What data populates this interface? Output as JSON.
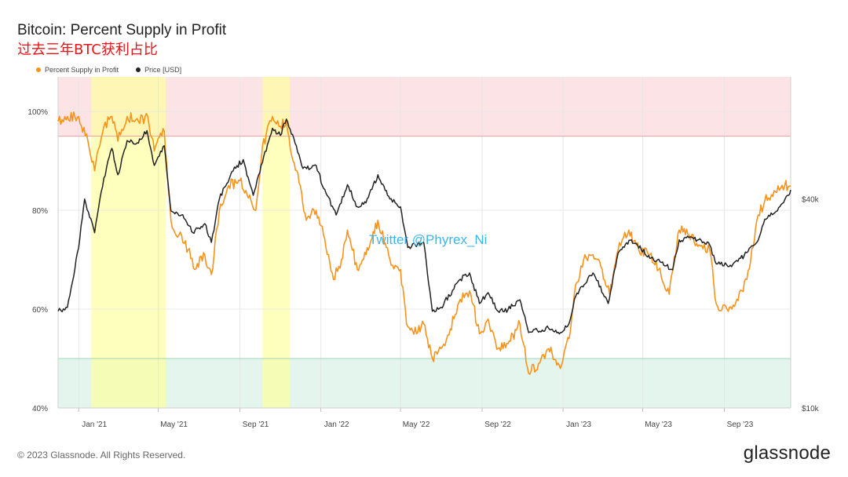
{
  "header": {
    "title": "Bitcoin: Percent Supply in Profit",
    "subtitle": "过去三年BTC获利占比"
  },
  "legend": [
    {
      "label": "Percent Supply in Profit",
      "color": "#f7931a"
    },
    {
      "label": "Price [USD]",
      "color": "#222222"
    }
  ],
  "watermark": "Twitter @Phyrex_Ni",
  "footer": {
    "copyright": "© 2023 Glassnode. All Rights Reserved.",
    "brand": "glassnode"
  },
  "chart_data": {
    "type": "line",
    "x_range": [
      "2020-12-01",
      "2023-12-10"
    ],
    "x_ticks": [
      "Jan '21",
      "May '21",
      "Sep '21",
      "Jan '22",
      "May '22",
      "Sep '22",
      "Jan '23",
      "May '23",
      "Sep '23"
    ],
    "y_left": {
      "label": "",
      "range": [
        40,
        107
      ],
      "ticks": [
        "40%",
        "60%",
        "80%",
        "100%"
      ],
      "tick_values": [
        40,
        60,
        80,
        100
      ]
    },
    "y_right": {
      "label": "",
      "scale": "log",
      "range": [
        10000,
        90000
      ],
      "ticks": [
        "$10k",
        "$40k"
      ],
      "tick_values": [
        10000,
        40000
      ]
    },
    "bands": [
      {
        "name": "profit_high_zone",
        "from": 95,
        "to": 107,
        "color": "#fce4e6"
      },
      {
        "name": "profit_low_zone",
        "from": 40,
        "to": 50,
        "color": "#e3f5ec"
      }
    ],
    "threshold_lines": [
      {
        "value": 95,
        "color": "#e8a0a0"
      },
      {
        "value": 50,
        "color": "#9fd6b8"
      }
    ],
    "highlight_ranges": [
      {
        "from": "2021-01-20",
        "to": "2021-05-12",
        "color": "#ffff99"
      },
      {
        "from": "2021-10-05",
        "to": "2021-11-15",
        "color": "#ffff99"
      }
    ],
    "grid": true,
    "legend_position": "top-left",
    "series": [
      {
        "name": "Percent Supply in Profit",
        "axis": "left",
        "color": "#f7931a",
        "points": [
          [
            "2020-12-01",
            98
          ],
          [
            "2020-12-15",
            99
          ],
          [
            "2021-01-01",
            99
          ],
          [
            "2021-01-15",
            94
          ],
          [
            "2021-01-25",
            88
          ],
          [
            "2021-02-08",
            97
          ],
          [
            "2021-02-20",
            99
          ],
          [
            "2021-03-01",
            94
          ],
          [
            "2021-03-15",
            99
          ],
          [
            "2021-04-01",
            98
          ],
          [
            "2021-04-15",
            99
          ],
          [
            "2021-04-25",
            92
          ],
          [
            "2021-05-10",
            96
          ],
          [
            "2021-05-20",
            78
          ],
          [
            "2021-06-01",
            75
          ],
          [
            "2021-06-15",
            72
          ],
          [
            "2021-06-25",
            68
          ],
          [
            "2021-07-10",
            71
          ],
          [
            "2021-07-20",
            67
          ],
          [
            "2021-08-01",
            80
          ],
          [
            "2021-08-15",
            85
          ],
          [
            "2021-09-01",
            86
          ],
          [
            "2021-09-10",
            84
          ],
          [
            "2021-09-25",
            80
          ],
          [
            "2021-10-05",
            93
          ],
          [
            "2021-10-20",
            99
          ],
          [
            "2021-11-01",
            97
          ],
          [
            "2021-11-10",
            98
          ],
          [
            "2021-11-20",
            90
          ],
          [
            "2021-12-01",
            85
          ],
          [
            "2021-12-10",
            78
          ],
          [
            "2021-12-25",
            80
          ],
          [
            "2022-01-05",
            75
          ],
          [
            "2022-01-20",
            66
          ],
          [
            "2022-02-01",
            70
          ],
          [
            "2022-02-10",
            76
          ],
          [
            "2022-02-25",
            68
          ],
          [
            "2022-03-10",
            71
          ],
          [
            "2022-03-28",
            78
          ],
          [
            "2022-04-15",
            70
          ],
          [
            "2022-05-01",
            68
          ],
          [
            "2022-05-10",
            57
          ],
          [
            "2022-05-25",
            55
          ],
          [
            "2022-06-05",
            57
          ],
          [
            "2022-06-18",
            50
          ],
          [
            "2022-07-01",
            52
          ],
          [
            "2022-07-15",
            56
          ],
          [
            "2022-07-30",
            62
          ],
          [
            "2022-08-15",
            63
          ],
          [
            "2022-08-28",
            55
          ],
          [
            "2022-09-10",
            58
          ],
          [
            "2022-09-25",
            52
          ],
          [
            "2022-10-10",
            53
          ],
          [
            "2022-10-28",
            57
          ],
          [
            "2022-11-10",
            47
          ],
          [
            "2022-11-25",
            49
          ],
          [
            "2022-12-10",
            52
          ],
          [
            "2022-12-28",
            48
          ],
          [
            "2023-01-10",
            54
          ],
          [
            "2023-01-20",
            65
          ],
          [
            "2023-02-01",
            70
          ],
          [
            "2023-02-15",
            71
          ],
          [
            "2023-03-01",
            68
          ],
          [
            "2023-03-12",
            63
          ],
          [
            "2023-03-25",
            72
          ],
          [
            "2023-04-10",
            76
          ],
          [
            "2023-04-25",
            72
          ],
          [
            "2023-05-10",
            71
          ],
          [
            "2023-05-25",
            68
          ],
          [
            "2023-06-10",
            63
          ],
          [
            "2023-06-25",
            76
          ],
          [
            "2023-07-10",
            75
          ],
          [
            "2023-07-25",
            73
          ],
          [
            "2023-08-10",
            72
          ],
          [
            "2023-08-20",
            61
          ],
          [
            "2023-09-05",
            60
          ],
          [
            "2023-09-20",
            62
          ],
          [
            "2023-10-05",
            66
          ],
          [
            "2023-10-20",
            78
          ],
          [
            "2023-11-01",
            82
          ],
          [
            "2023-11-15",
            84
          ],
          [
            "2023-12-01",
            85
          ],
          [
            "2023-12-10",
            85
          ]
        ]
      },
      {
        "name": "Price [USD]",
        "axis": "right",
        "color": "#222222",
        "points": [
          [
            "2020-12-01",
            19000
          ],
          [
            "2020-12-15",
            19500
          ],
          [
            "2021-01-01",
            29000
          ],
          [
            "2021-01-10",
            40000
          ],
          [
            "2021-01-25",
            32000
          ],
          [
            "2021-02-08",
            46000
          ],
          [
            "2021-02-20",
            56000
          ],
          [
            "2021-03-01",
            47000
          ],
          [
            "2021-03-15",
            59000
          ],
          [
            "2021-04-01",
            58000
          ],
          [
            "2021-04-14",
            63000
          ],
          [
            "2021-04-25",
            50000
          ],
          [
            "2021-05-10",
            57000
          ],
          [
            "2021-05-20",
            37000
          ],
          [
            "2021-06-05",
            36000
          ],
          [
            "2021-06-22",
            32000
          ],
          [
            "2021-07-10",
            34000
          ],
          [
            "2021-07-20",
            30000
          ],
          [
            "2021-08-01",
            40000
          ],
          [
            "2021-08-20",
            48000
          ],
          [
            "2021-09-06",
            52000
          ],
          [
            "2021-09-21",
            41000
          ],
          [
            "2021-10-05",
            51000
          ],
          [
            "2021-10-20",
            64000
          ],
          [
            "2021-11-01",
            61000
          ],
          [
            "2021-11-10",
            68000
          ],
          [
            "2021-11-25",
            57000
          ],
          [
            "2021-12-05",
            49000
          ],
          [
            "2021-12-25",
            50000
          ],
          [
            "2022-01-05",
            43000
          ],
          [
            "2022-01-24",
            36000
          ],
          [
            "2022-02-10",
            44000
          ],
          [
            "2022-02-25",
            38000
          ],
          [
            "2022-03-10",
            39000
          ],
          [
            "2022-03-28",
            47000
          ],
          [
            "2022-04-15",
            40000
          ],
          [
            "2022-05-01",
            38000
          ],
          [
            "2022-05-12",
            29000
          ],
          [
            "2022-06-05",
            30000
          ],
          [
            "2022-06-18",
            19000
          ],
          [
            "2022-07-01",
            19500
          ],
          [
            "2022-07-30",
            23500
          ],
          [
            "2022-08-13",
            24500
          ],
          [
            "2022-08-28",
            20000
          ],
          [
            "2022-09-10",
            21500
          ],
          [
            "2022-09-25",
            19000
          ],
          [
            "2022-10-10",
            19200
          ],
          [
            "2022-10-28",
            20500
          ],
          [
            "2022-11-10",
            16500
          ],
          [
            "2022-12-10",
            17000
          ],
          [
            "2022-12-30",
            16500
          ],
          [
            "2023-01-10",
            17500
          ],
          [
            "2023-01-20",
            21000
          ],
          [
            "2023-02-15",
            24500
          ],
          [
            "2023-03-10",
            20000
          ],
          [
            "2023-03-25",
            28000
          ],
          [
            "2023-04-14",
            30500
          ],
          [
            "2023-05-10",
            27500
          ],
          [
            "2023-06-15",
            25000
          ],
          [
            "2023-06-25",
            30500
          ],
          [
            "2023-07-15",
            31000
          ],
          [
            "2023-08-10",
            29500
          ],
          [
            "2023-08-20",
            26000
          ],
          [
            "2023-09-10",
            25800
          ],
          [
            "2023-10-01",
            27500
          ],
          [
            "2023-10-20",
            30000
          ],
          [
            "2023-11-01",
            35000
          ],
          [
            "2023-11-20",
            37000
          ],
          [
            "2023-12-05",
            41000
          ],
          [
            "2023-12-10",
            42500
          ]
        ]
      }
    ]
  }
}
